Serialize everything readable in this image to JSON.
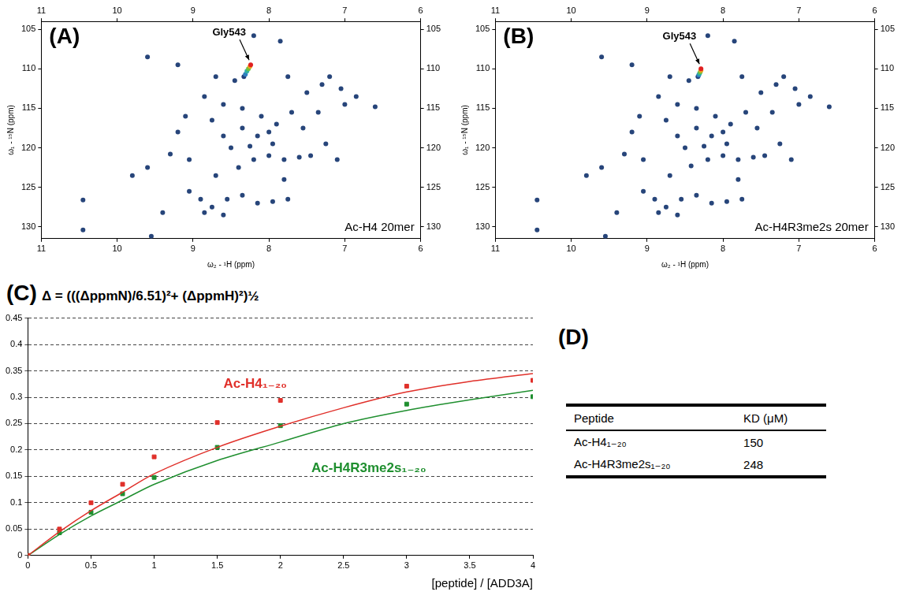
{
  "chart_data": [
    {
      "panel": "(A)",
      "type": "scatter",
      "x_label": "ω₂ - ¹H (ppm)",
      "y_label": "ω₁ - ¹⁵N (ppm)",
      "annotations": [
        "Ac-H4 20mer"
      ],
      "xlim": [
        11,
        6
      ],
      "xticks": [
        11,
        10,
        9,
        8,
        7,
        6
      ],
      "ylim": [
        131.5,
        104
      ],
      "yticks": [
        105,
        110,
        115,
        120,
        125,
        130
      ],
      "series": [
        {
          "color": "#27457a",
          "marker": "circle",
          "x": [
            10.45,
            10.45,
            9.55,
            9.4,
            8.85,
            8.6,
            8.2,
            7.85,
            9.8,
            9.6,
            9.3,
            9.05,
            9.05,
            8.9,
            8.75,
            8.55,
            8.35,
            8.15,
            7.95,
            7.75,
            8.7,
            8.4,
            8.2,
            8.0,
            7.8,
            7.6,
            7.45,
            8.6,
            8.35,
            8.15,
            8.0,
            7.9,
            8.1,
            8.35,
            8.6,
            8.85,
            9.1,
            7.7,
            7.5,
            7.3,
            7.2,
            7.05,
            7.0,
            7.35,
            7.55,
            6.85,
            6.6,
            7.75,
            8.45,
            8.7,
            9.6,
            9.2,
            7.8,
            8.5,
            8.25,
            7.95,
            9.2,
            8.75,
            7.1,
            7.25
          ],
          "values": [
            126.6,
            130.4,
            131.2,
            128.2,
            128.2,
            128.5,
            105.8,
            106.5,
            123.5,
            122.5,
            120.8,
            121.5,
            125.5,
            126.5,
            127.5,
            126.5,
            126.0,
            127.0,
            126.8,
            126.5,
            123.5,
            122.5,
            121.5,
            121.0,
            121.5,
            121.2,
            121.0,
            118.5,
            117.5,
            118.5,
            118.0,
            117.0,
            116.0,
            115.0,
            114.5,
            113.5,
            116.0,
            115.5,
            113.0,
            112.0,
            111.0,
            112.5,
            114.5,
            115.5,
            117.5,
            113.5,
            114.8,
            111.0,
            111.5,
            111.0,
            108.5,
            109.5,
            124.0,
            120.0,
            119.8,
            119.5,
            118.0,
            116.5,
            121.5,
            119.5
          ]
        },
        {
          "name": "Gly543",
          "marker": "circle",
          "colors": [
            "#23407c",
            "#2f7fc0",
            "#30b0a0",
            "#70c040",
            "#f0a020",
            "#e02020"
          ],
          "x": [
            8.33,
            8.31,
            8.29,
            8.27,
            8.25,
            8.24
          ],
          "values": [
            111.0,
            110.7,
            110.3,
            110.0,
            109.7,
            109.5
          ]
        }
      ]
    },
    {
      "panel": "(B)",
      "type": "scatter",
      "x_label": "ω₂ - ¹H (ppm)",
      "y_label": "ω₁ - ¹⁵N (ppm)",
      "annotations": [
        "Ac-H4R3me2s 20mer"
      ],
      "xlim": [
        11,
        6
      ],
      "xticks": [
        11,
        10,
        9,
        8,
        7,
        6
      ],
      "ylim": [
        131.5,
        104
      ],
      "yticks": [
        105,
        110,
        115,
        120,
        125,
        130
      ],
      "series": [
        {
          "color": "#27457a",
          "marker": "circle",
          "x": [
            10.45,
            10.45,
            9.55,
            9.4,
            8.85,
            8.6,
            8.2,
            7.85,
            9.8,
            9.6,
            9.3,
            9.05,
            9.05,
            8.9,
            8.75,
            8.55,
            8.35,
            8.15,
            7.95,
            7.75,
            8.7,
            8.42,
            8.2,
            8.0,
            7.8,
            7.6,
            7.45,
            8.6,
            8.35,
            8.15,
            8.0,
            7.9,
            8.1,
            8.35,
            8.6,
            8.85,
            9.1,
            7.7,
            7.5,
            7.3,
            7.2,
            7.05,
            7.0,
            7.35,
            7.55,
            6.85,
            6.6,
            7.75,
            8.45,
            8.7,
            9.6,
            9.2,
            7.8,
            8.5,
            8.25,
            7.95,
            9.2,
            8.75,
            7.1,
            7.25
          ],
          "values": [
            126.6,
            130.4,
            131.2,
            128.2,
            128.2,
            128.5,
            105.8,
            106.5,
            123.5,
            122.5,
            120.8,
            121.5,
            125.5,
            126.5,
            127.5,
            126.5,
            126.0,
            127.0,
            126.8,
            126.5,
            123.5,
            122.3,
            121.5,
            121.0,
            121.5,
            121.2,
            121.0,
            118.5,
            117.5,
            118.5,
            118.0,
            117.0,
            116.0,
            115.0,
            114.5,
            113.5,
            116.0,
            115.5,
            113.0,
            112.0,
            111.0,
            112.5,
            114.5,
            115.5,
            117.5,
            113.5,
            114.8,
            111.0,
            111.5,
            111.0,
            108.5,
            109.5,
            124.0,
            120.0,
            119.8,
            119.5,
            118.0,
            116.5,
            121.5,
            119.5
          ]
        },
        {
          "name": "Gly543",
          "marker": "circle",
          "colors": [
            "#23407c",
            "#2f7fc0",
            "#30b0a0",
            "#70c040",
            "#f0a020",
            "#e02020"
          ],
          "x": [
            8.33,
            8.32,
            8.31,
            8.3,
            8.29,
            8.29
          ],
          "values": [
            111.0,
            110.8,
            110.6,
            110.4,
            110.2,
            110.0
          ]
        }
      ]
    },
    {
      "panel": "(C)",
      "type": "scatter",
      "title": "Δ = (((ΔppmN)/6.51)²+ (ΔppmH)²)½",
      "x_label": "[peptide] / [ADD3A]",
      "xlim": [
        0,
        4
      ],
      "xticks": [
        0,
        0.5,
        1,
        1.5,
        2,
        2.5,
        3,
        3.5,
        4
      ],
      "ylim": [
        0,
        0.45
      ],
      "yticks": [
        0,
        0.05,
        0.1,
        0.15,
        0.2,
        0.25,
        0.3,
        0.35,
        0.4,
        0.45
      ],
      "grid": true,
      "series": [
        {
          "name": "Ac-H4₁₋₂₀",
          "color": "#e0302a",
          "marker": "square",
          "x": [
            0,
            0.25,
            0.5,
            0.75,
            1,
            1.5,
            2,
            3,
            4
          ],
          "values": [
            0,
            0.05,
            0.1,
            0.135,
            0.187,
            0.252,
            0.294,
            0.321,
            0.332
          ],
          "fit_x": [
            0,
            0.25,
            0.5,
            0.75,
            1,
            1.5,
            2,
            2.5,
            3,
            3.5,
            4
          ],
          "fit_values": [
            0,
            0.045,
            0.085,
            0.12,
            0.155,
            0.205,
            0.245,
            0.28,
            0.31,
            0.33,
            0.345
          ]
        },
        {
          "name": "Ac-H4R3me2s₁₋₂₀",
          "color": "#1f8f2f",
          "marker": "square",
          "x": [
            0,
            0.25,
            0.5,
            0.75,
            1,
            1.5,
            2,
            3,
            4
          ],
          "values": [
            0,
            0.043,
            0.082,
            0.117,
            0.148,
            0.205,
            0.246,
            0.287,
            0.301
          ],
          "fit_x": [
            0,
            0.25,
            0.5,
            0.75,
            1,
            1.5,
            2,
            2.5,
            3,
            3.5,
            4
          ],
          "fit_values": [
            0,
            0.04,
            0.075,
            0.105,
            0.135,
            0.18,
            0.215,
            0.25,
            0.275,
            0.295,
            0.313
          ]
        }
      ]
    }
  ],
  "table": {
    "panel": "(D)",
    "header": [
      "Peptide",
      "KD (μM)"
    ],
    "rows": [
      [
        "Ac-H4₁₋₂₀",
        150
      ],
      [
        "Ac-H4R3me2s₁₋₂₀",
        248
      ]
    ]
  }
}
